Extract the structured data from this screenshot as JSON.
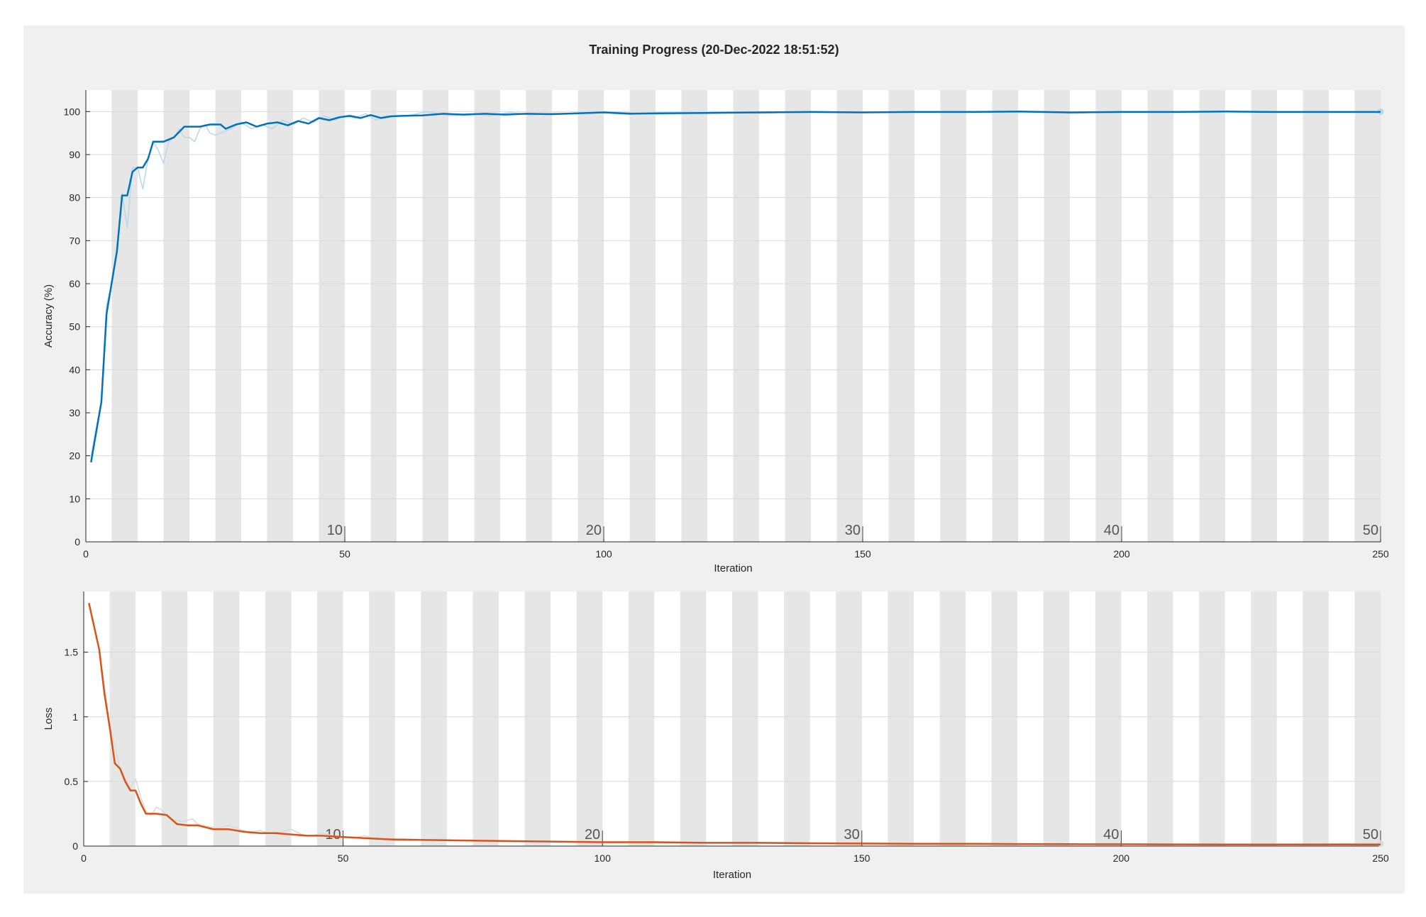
{
  "page": {
    "title": "Training Progress (20-Dec-2022 18:51:52)"
  },
  "colors": {
    "panel_bg": "#f0f0f0",
    "plot_bg": "#ffffff",
    "epoch_band": "#e6e6e6",
    "grid": "#d9d9d9",
    "axis_text": "#262626",
    "accuracy_line": "#0072bd",
    "accuracy_raw": "#b8d7ec",
    "loss_line": "#d95319",
    "loss_raw": "#d9d9d9"
  },
  "chart_data": [
    {
      "name": "accuracy",
      "type": "line",
      "xlabel": "Iteration",
      "ylabel": "Accuracy (%)",
      "xlim": [
        0,
        250
      ],
      "ylim": [
        0,
        105
      ],
      "xticks": [
        0,
        50,
        100,
        150,
        200,
        250
      ],
      "yticks": [
        0,
        10,
        20,
        30,
        40,
        50,
        60,
        70,
        80,
        90,
        100
      ],
      "epoch_labels": [
        10,
        20,
        30,
        40,
        50
      ],
      "iterations_per_epoch": 5,
      "grid": true,
      "series": [
        {
          "role": "smoothed",
          "x": [
            1,
            3,
            4,
            6,
            7,
            8,
            9,
            10,
            11,
            12,
            13,
            15,
            17,
            19,
            22,
            24,
            26,
            27,
            29,
            31,
            33,
            35,
            37,
            39,
            41,
            43,
            45,
            47,
            49,
            51,
            53,
            55,
            57,
            59,
            61,
            65,
            69,
            73,
            77,
            81,
            85,
            90,
            95,
            100,
            105,
            110,
            120,
            130,
            140,
            150,
            160,
            170,
            180,
            190,
            200,
            210,
            220,
            230,
            240,
            250
          ],
          "y": [
            18.5,
            32.5,
            53,
            67.5,
            80.5,
            80.5,
            86,
            87,
            87,
            89,
            93,
            93,
            94,
            96.5,
            96.5,
            97,
            97,
            96,
            97,
            97.5,
            96.5,
            97.2,
            97.5,
            96.8,
            97.8,
            97.2,
            98.5,
            98,
            98.7,
            99,
            98.5,
            99.2,
            98.5,
            98.9,
            99,
            99.1,
            99.5,
            99.3,
            99.5,
            99.3,
            99.5,
            99.4,
            99.6,
            99.8,
            99.5,
            99.6,
            99.7,
            99.8,
            99.9,
            99.8,
            99.9,
            99.9,
            100,
            99.8,
            99.9,
            99.9,
            100,
            99.9,
            99.9,
            99.9
          ]
        },
        {
          "role": "raw",
          "x": [
            1,
            3,
            4,
            5,
            6,
            7,
            8,
            9,
            10,
            11,
            12,
            13,
            14,
            15,
            16,
            17,
            18,
            19,
            20,
            21,
            22,
            23,
            24,
            25,
            26,
            28,
            30,
            32,
            34,
            36,
            38,
            40,
            42,
            44,
            46,
            48,
            50,
            52,
            54,
            56,
            58,
            62,
            66,
            70,
            74,
            78,
            82,
            86,
            90,
            95,
            100,
            110,
            120,
            130,
            140,
            150,
            160,
            170,
            180,
            190,
            200,
            210,
            220,
            230,
            240,
            250
          ],
          "y": [
            20,
            33,
            55,
            60,
            68,
            81,
            73,
            87,
            87,
            82,
            89,
            93,
            91,
            88,
            93,
            94,
            96,
            94,
            94,
            93,
            96,
            97,
            95,
            94.5,
            95,
            96,
            97.5,
            96,
            97,
            96,
            98,
            97,
            98.5,
            97.5,
            99,
            98,
            99,
            98.5,
            99.5,
            98,
            99,
            99,
            100,
            99,
            99.5,
            99,
            99.8,
            99.2,
            99.6,
            99.5,
            100,
            99.4,
            99.8,
            99.6,
            100,
            99.8,
            100,
            100,
            100,
            99.6,
            100,
            100,
            100,
            100,
            100,
            100
          ]
        }
      ]
    },
    {
      "name": "loss",
      "type": "line",
      "xlabel": "Iteration",
      "ylabel": "Loss",
      "xlim": [
        0,
        250
      ],
      "ylim": [
        0,
        1.97
      ],
      "xticks": [
        0,
        50,
        100,
        150,
        200,
        250
      ],
      "yticks": [
        0,
        0.5,
        1,
        1.5
      ],
      "ytick_labels": [
        "0",
        "0.5",
        "1",
        "1.5"
      ],
      "epoch_labels": [
        10,
        20,
        30,
        40,
        50
      ],
      "iterations_per_epoch": 5,
      "grid": true,
      "series": [
        {
          "role": "smoothed",
          "x": [
            1,
            3,
            4,
            5,
            6,
            7,
            8,
            9,
            10,
            11,
            12,
            14,
            16,
            18,
            20,
            22,
            25,
            28,
            31,
            34,
            37,
            40,
            43,
            46,
            50,
            55,
            60,
            70,
            80,
            90,
            100,
            110,
            120,
            130,
            140,
            150,
            160,
            170,
            180,
            190,
            200,
            210,
            220,
            230,
            240,
            250
          ],
          "y": [
            1.88,
            1.52,
            1.18,
            0.92,
            0.64,
            0.6,
            0.5,
            0.43,
            0.43,
            0.33,
            0.25,
            0.25,
            0.24,
            0.17,
            0.16,
            0.16,
            0.13,
            0.13,
            0.11,
            0.1,
            0.1,
            0.09,
            0.08,
            0.08,
            0.07,
            0.06,
            0.05,
            0.045,
            0.04,
            0.035,
            0.03,
            0.03,
            0.025,
            0.025,
            0.022,
            0.02,
            0.018,
            0.018,
            0.016,
            0.015,
            0.014,
            0.013,
            0.012,
            0.012,
            0.012,
            0.012
          ]
        },
        {
          "role": "raw",
          "x": [
            1,
            3,
            5,
            7,
            9,
            10,
            11,
            12,
            13,
            14,
            15,
            16,
            17,
            18,
            19,
            20,
            21,
            22,
            23,
            24,
            26,
            28,
            30,
            32,
            34,
            36,
            38,
            40,
            42,
            44,
            46,
            48,
            50,
            52,
            54,
            56,
            58,
            60,
            65,
            70,
            80,
            90,
            100,
            120,
            140,
            160,
            180,
            200,
            220,
            250
          ],
          "y": [
            1.88,
            1.52,
            0.95,
            0.6,
            0.45,
            0.52,
            0.38,
            0.27,
            0.24,
            0.3,
            0.28,
            0.24,
            0.2,
            0.2,
            0.19,
            0.2,
            0.21,
            0.17,
            0.16,
            0.15,
            0.14,
            0.16,
            0.13,
            0.11,
            0.12,
            0.1,
            0.11,
            0.13,
            0.09,
            0.08,
            0.1,
            0.08,
            0.07,
            0.06,
            0.08,
            0.06,
            0.05,
            0.06,
            0.05,
            0.045,
            0.04,
            0.035,
            0.03,
            0.025,
            0.02,
            0.018,
            0.016,
            0.014,
            0.012,
            0.02
          ]
        }
      ]
    }
  ]
}
